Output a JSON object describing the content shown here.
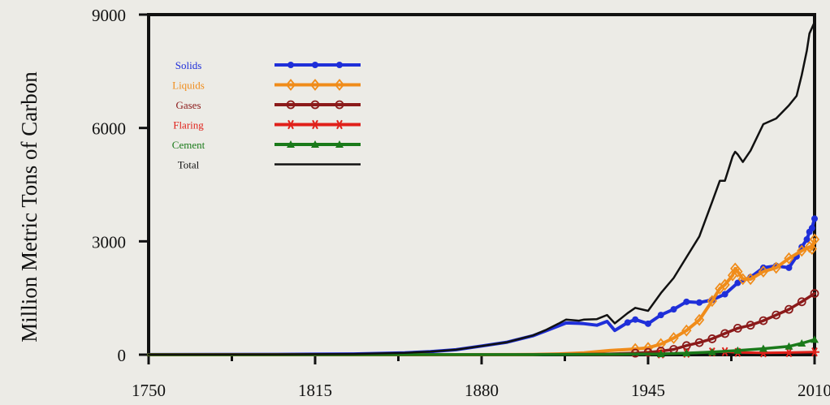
{
  "chart_data": {
    "type": "line",
    "ylabel": "Million Metric Tons of Carbon",
    "xlabel": "",
    "title": "",
    "xlim": [
      1750,
      2010
    ],
    "ylim": [
      0,
      9000
    ],
    "x_ticks": [
      1750,
      1815,
      1880,
      1945,
      2010
    ],
    "y_ticks": [
      0,
      3000,
      6000,
      9000
    ],
    "grid": false,
    "legend_position": "top-left",
    "series": [
      {
        "name": "Solids",
        "color": "#1f2fd9",
        "marker": "dot",
        "points": [
          [
            1750,
            3
          ],
          [
            1800,
            8
          ],
          [
            1830,
            20
          ],
          [
            1850,
            50
          ],
          [
            1860,
            80
          ],
          [
            1870,
            130
          ],
          [
            1880,
            230
          ],
          [
            1890,
            330
          ],
          [
            1900,
            500
          ],
          [
            1905,
            630
          ],
          [
            1910,
            760
          ],
          [
            1913,
            840
          ],
          [
            1918,
            830
          ],
          [
            1920,
            820
          ],
          [
            1925,
            780
          ],
          [
            1929,
            880
          ],
          [
            1932,
            640
          ],
          [
            1937,
            850
          ],
          [
            1940,
            930
          ],
          [
            1945,
            820
          ],
          [
            1950,
            1050
          ],
          [
            1955,
            1200
          ],
          [
            1960,
            1400
          ],
          [
            1965,
            1380
          ],
          [
            1970,
            1450
          ],
          [
            1975,
            1600
          ],
          [
            1980,
            1900
          ],
          [
            1985,
            2050
          ],
          [
            1990,
            2300
          ],
          [
            1995,
            2350
          ],
          [
            2000,
            2300
          ],
          [
            2003,
            2600
          ],
          [
            2005,
            2850
          ],
          [
            2007,
            3050
          ],
          [
            2008,
            3250
          ],
          [
            2009,
            3350
          ],
          [
            2010,
            3600
          ]
        ]
      },
      {
        "name": "Liquids",
        "color": "#f08c1a",
        "marker": "diamond",
        "points": [
          [
            1750,
            0
          ],
          [
            1870,
            0
          ],
          [
            1900,
            5
          ],
          [
            1910,
            20
          ],
          [
            1920,
            50
          ],
          [
            1930,
            110
          ],
          [
            1940,
            150
          ],
          [
            1945,
            180
          ],
          [
            1950,
            280
          ],
          [
            1955,
            440
          ],
          [
            1960,
            640
          ],
          [
            1965,
            920
          ],
          [
            1970,
            1420
          ],
          [
            1973,
            1750
          ],
          [
            1975,
            1850
          ],
          [
            1978,
            2100
          ],
          [
            1979,
            2280
          ],
          [
            1980,
            2200
          ],
          [
            1982,
            2000
          ],
          [
            1985,
            2000
          ],
          [
            1990,
            2200
          ],
          [
            1995,
            2300
          ],
          [
            2000,
            2550
          ],
          [
            2005,
            2750
          ],
          [
            2008,
            2850
          ],
          [
            2009,
            2800
          ],
          [
            2010,
            3050
          ]
        ]
      },
      {
        "name": "Gases",
        "color": "#8b1a1a",
        "marker": "circle",
        "points": [
          [
            1750,
            0
          ],
          [
            1880,
            0
          ],
          [
            1900,
            5
          ],
          [
            1920,
            10
          ],
          [
            1930,
            20
          ],
          [
            1940,
            40
          ],
          [
            1945,
            60
          ],
          [
            1950,
            95
          ],
          [
            1955,
            140
          ],
          [
            1960,
            240
          ],
          [
            1965,
            320
          ],
          [
            1970,
            420
          ],
          [
            1975,
            560
          ],
          [
            1980,
            700
          ],
          [
            1985,
            780
          ],
          [
            1990,
            900
          ],
          [
            1995,
            1050
          ],
          [
            2000,
            1200
          ],
          [
            2005,
            1400
          ],
          [
            2010,
            1620
          ]
        ]
      },
      {
        "name": "Flaring",
        "color": "#e0201a",
        "marker": "star",
        "points": [
          [
            1750,
            0
          ],
          [
            1900,
            0
          ],
          [
            1930,
            3
          ],
          [
            1950,
            20
          ],
          [
            1960,
            40
          ],
          [
            1970,
            70
          ],
          [
            1975,
            80
          ],
          [
            1980,
            60
          ],
          [
            1990,
            50
          ],
          [
            2000,
            55
          ],
          [
            2010,
            70
          ]
        ]
      },
      {
        "name": "Cement",
        "color": "#1a7a1a",
        "marker": "triangle",
        "points": [
          [
            1750,
            0
          ],
          [
            1900,
            2
          ],
          [
            1930,
            10
          ],
          [
            1950,
            20
          ],
          [
            1960,
            40
          ],
          [
            1970,
            70
          ],
          [
            1980,
            110
          ],
          [
            1990,
            160
          ],
          [
            2000,
            220
          ],
          [
            2005,
            300
          ],
          [
            2010,
            400
          ]
        ]
      },
      {
        "name": "Total",
        "color": "#111111",
        "marker": "none",
        "points": [
          [
            1750,
            3
          ],
          [
            1800,
            8
          ],
          [
            1830,
            20
          ],
          [
            1850,
            50
          ],
          [
            1860,
            80
          ],
          [
            1870,
            130
          ],
          [
            1880,
            230
          ],
          [
            1890,
            330
          ],
          [
            1900,
            510
          ],
          [
            1905,
            650
          ],
          [
            1910,
            820
          ],
          [
            1913,
            930
          ],
          [
            1918,
            900
          ],
          [
            1920,
            930
          ],
          [
            1925,
            940
          ],
          [
            1929,
            1050
          ],
          [
            1932,
            830
          ],
          [
            1937,
            1100
          ],
          [
            1940,
            1240
          ],
          [
            1945,
            1160
          ],
          [
            1950,
            1630
          ],
          [
            1955,
            2030
          ],
          [
            1960,
            2580
          ],
          [
            1965,
            3130
          ],
          [
            1970,
            4040
          ],
          [
            1973,
            4600
          ],
          [
            1975,
            4600
          ],
          [
            1978,
            5250
          ],
          [
            1979,
            5370
          ],
          [
            1980,
            5300
          ],
          [
            1982,
            5100
          ],
          [
            1985,
            5400
          ],
          [
            1990,
            6100
          ],
          [
            1995,
            6250
          ],
          [
            2000,
            6600
          ],
          [
            2003,
            6850
          ],
          [
            2005,
            7400
          ],
          [
            2007,
            8050
          ],
          [
            2008,
            8500
          ],
          [
            2010,
            8800
          ]
        ]
      }
    ]
  }
}
